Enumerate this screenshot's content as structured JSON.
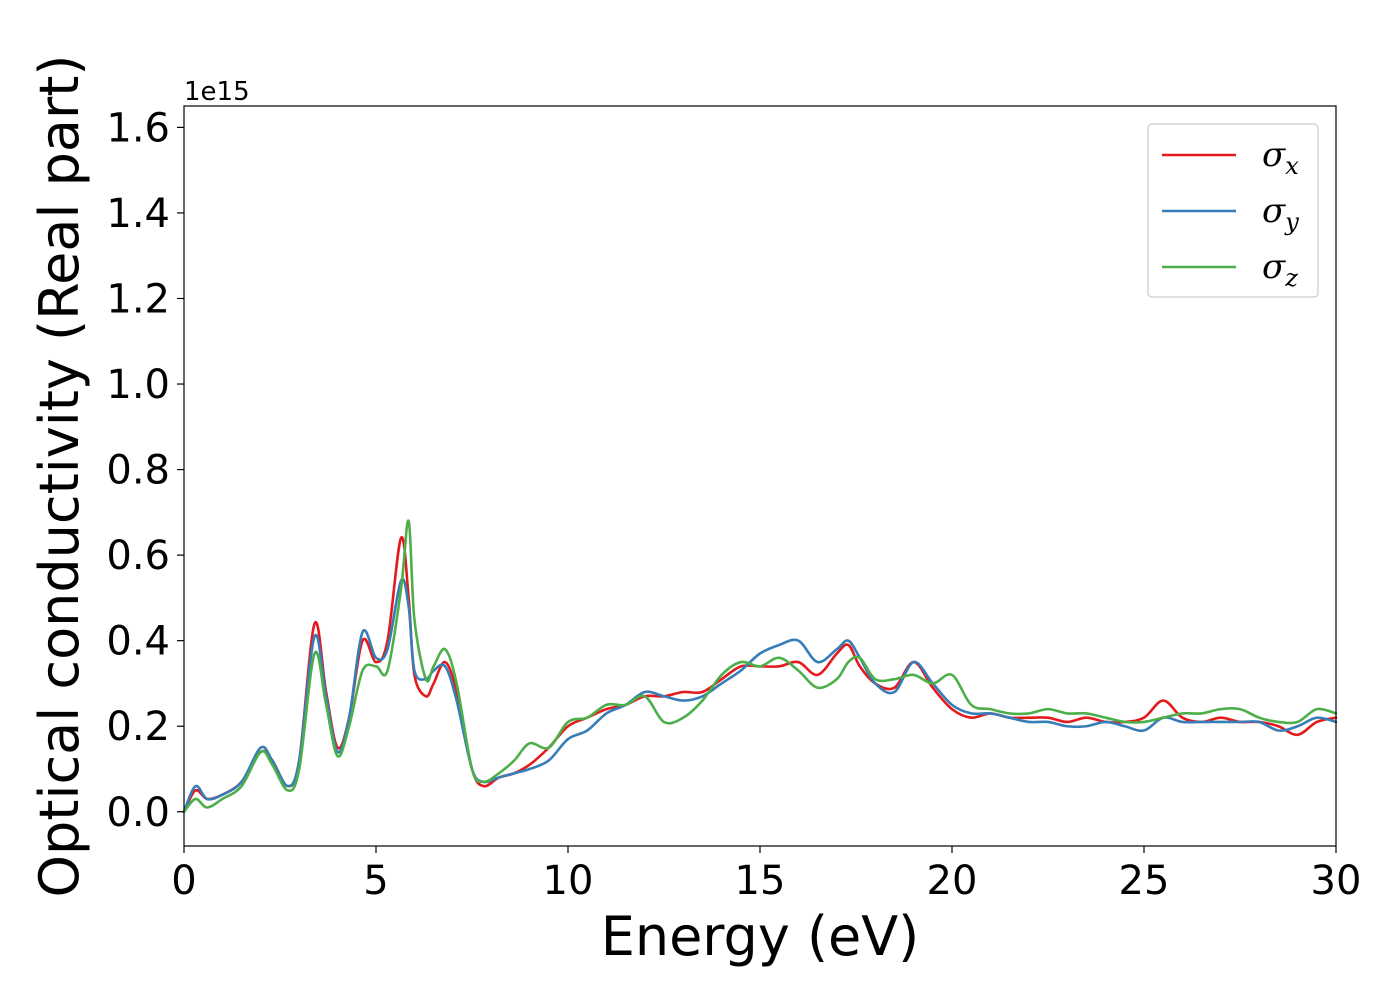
{
  "chart_data": {
    "type": "line",
    "xlabel": "Energy (eV)",
    "ylabel": "Optical conductivity (Real part)",
    "y_offset_label": "1e15",
    "xlim": [
      0,
      30
    ],
    "ylim": [
      -0.08,
      1.65
    ],
    "x_ticks": [
      0,
      5,
      10,
      15,
      20,
      25,
      30
    ],
    "x_tick_labels": [
      "0",
      "5",
      "10",
      "15",
      "20",
      "25",
      "30"
    ],
    "y_ticks": [
      0.0,
      0.2,
      0.4,
      0.6,
      0.8,
      1.0,
      1.2,
      1.4,
      1.6
    ],
    "y_tick_labels": [
      "0.0",
      "0.2",
      "0.4",
      "0.6",
      "0.8",
      "1.0",
      "1.2",
      "1.4",
      "1.6"
    ],
    "grid": false,
    "legend_position": "top-right",
    "series": [
      {
        "name": "σ",
        "subscript": "x",
        "color": "#e41a1c",
        "x": [
          0,
          0.3,
          0.6,
          1.0,
          1.5,
          2.0,
          2.3,
          2.7,
          3.0,
          3.4,
          3.7,
          4.0,
          4.3,
          4.65,
          5.0,
          5.3,
          5.65,
          5.85,
          6.0,
          6.3,
          6.5,
          6.8,
          7.1,
          7.5,
          7.8,
          8.2,
          8.6,
          9.0,
          9.5,
          10.0,
          10.5,
          11.0,
          11.5,
          12.0,
          12.5,
          13.0,
          13.5,
          14.0,
          14.5,
          15.0,
          15.5,
          16.0,
          16.5,
          17.0,
          17.3,
          17.6,
          18.0,
          18.5,
          19.0,
          19.5,
          20.0,
          20.5,
          21.0,
          21.5,
          22.0,
          22.5,
          23.0,
          23.5,
          24.0,
          24.5,
          25.0,
          25.5,
          26.0,
          26.5,
          27.0,
          27.5,
          28.0,
          28.5,
          29.0,
          29.5,
          30.0
        ],
        "y": [
          0,
          0.05,
          0.03,
          0.04,
          0.07,
          0.14,
          0.12,
          0.06,
          0.12,
          0.44,
          0.28,
          0.15,
          0.22,
          0.4,
          0.35,
          0.4,
          0.64,
          0.5,
          0.32,
          0.27,
          0.3,
          0.35,
          0.28,
          0.1,
          0.06,
          0.08,
          0.09,
          0.11,
          0.15,
          0.2,
          0.22,
          0.24,
          0.25,
          0.27,
          0.27,
          0.28,
          0.28,
          0.31,
          0.34,
          0.34,
          0.34,
          0.35,
          0.32,
          0.37,
          0.39,
          0.34,
          0.3,
          0.29,
          0.35,
          0.29,
          0.24,
          0.22,
          0.23,
          0.22,
          0.22,
          0.22,
          0.21,
          0.22,
          0.21,
          0.21,
          0.22,
          0.26,
          0.22,
          0.21,
          0.22,
          0.21,
          0.21,
          0.2,
          0.18,
          0.21,
          0.22
        ]
      },
      {
        "name": "σ",
        "subscript": "y",
        "color": "#377eb8",
        "x": [
          0,
          0.3,
          0.6,
          1.0,
          1.5,
          2.0,
          2.3,
          2.7,
          3.0,
          3.4,
          3.7,
          4.0,
          4.3,
          4.65,
          5.0,
          5.3,
          5.65,
          5.85,
          6.0,
          6.3,
          6.5,
          6.8,
          7.1,
          7.5,
          7.8,
          8.2,
          8.6,
          9.0,
          9.5,
          10.0,
          10.5,
          11.0,
          11.5,
          12.0,
          12.5,
          13.0,
          13.5,
          14.0,
          14.5,
          15.0,
          15.5,
          16.0,
          16.5,
          17.0,
          17.3,
          17.6,
          18.0,
          18.5,
          19.0,
          19.5,
          20.0,
          20.5,
          21.0,
          21.5,
          22.0,
          22.5,
          23.0,
          23.5,
          24.0,
          24.5,
          25.0,
          25.5,
          26.0,
          26.5,
          27.0,
          27.5,
          28.0,
          28.5,
          29.0,
          29.5,
          30.0
        ],
        "y": [
          0,
          0.06,
          0.03,
          0.04,
          0.07,
          0.15,
          0.12,
          0.06,
          0.12,
          0.41,
          0.27,
          0.14,
          0.22,
          0.42,
          0.36,
          0.38,
          0.54,
          0.48,
          0.33,
          0.31,
          0.33,
          0.34,
          0.26,
          0.1,
          0.07,
          0.08,
          0.09,
          0.1,
          0.12,
          0.17,
          0.19,
          0.23,
          0.25,
          0.28,
          0.27,
          0.26,
          0.27,
          0.3,
          0.33,
          0.37,
          0.39,
          0.4,
          0.35,
          0.38,
          0.4,
          0.36,
          0.3,
          0.28,
          0.35,
          0.3,
          0.25,
          0.23,
          0.23,
          0.22,
          0.21,
          0.21,
          0.2,
          0.2,
          0.21,
          0.2,
          0.19,
          0.22,
          0.21,
          0.21,
          0.21,
          0.21,
          0.21,
          0.19,
          0.2,
          0.22,
          0.21
        ]
      },
      {
        "name": "σ",
        "subscript": "z",
        "color": "#4daf4a",
        "x": [
          0,
          0.3,
          0.6,
          1.0,
          1.5,
          2.0,
          2.3,
          2.7,
          3.0,
          3.4,
          3.7,
          4.0,
          4.3,
          4.65,
          5.0,
          5.3,
          5.65,
          5.85,
          6.0,
          6.3,
          6.5,
          6.8,
          7.1,
          7.5,
          7.8,
          8.2,
          8.6,
          9.0,
          9.5,
          10.0,
          10.5,
          11.0,
          11.5,
          12.0,
          12.5,
          13.0,
          13.5,
          14.0,
          14.5,
          15.0,
          15.5,
          16.0,
          16.5,
          17.0,
          17.3,
          17.6,
          18.0,
          18.5,
          19.0,
          19.5,
          20.0,
          20.5,
          21.0,
          21.5,
          22.0,
          22.5,
          23.0,
          23.5,
          24.0,
          24.5,
          25.0,
          25.5,
          26.0,
          26.5,
          27.0,
          27.5,
          28.0,
          28.5,
          29.0,
          29.5,
          30.0
        ],
        "y": [
          0,
          0.03,
          0.01,
          0.03,
          0.06,
          0.14,
          0.11,
          0.05,
          0.1,
          0.37,
          0.25,
          0.13,
          0.2,
          0.33,
          0.34,
          0.33,
          0.52,
          0.68,
          0.45,
          0.31,
          0.34,
          0.38,
          0.3,
          0.1,
          0.07,
          0.09,
          0.12,
          0.16,
          0.15,
          0.21,
          0.22,
          0.25,
          0.25,
          0.27,
          0.21,
          0.22,
          0.26,
          0.32,
          0.35,
          0.34,
          0.36,
          0.33,
          0.29,
          0.31,
          0.35,
          0.36,
          0.31,
          0.31,
          0.32,
          0.3,
          0.32,
          0.25,
          0.24,
          0.23,
          0.23,
          0.24,
          0.23,
          0.23,
          0.22,
          0.21,
          0.21,
          0.22,
          0.23,
          0.23,
          0.24,
          0.24,
          0.22,
          0.21,
          0.21,
          0.24,
          0.23
        ]
      }
    ]
  }
}
